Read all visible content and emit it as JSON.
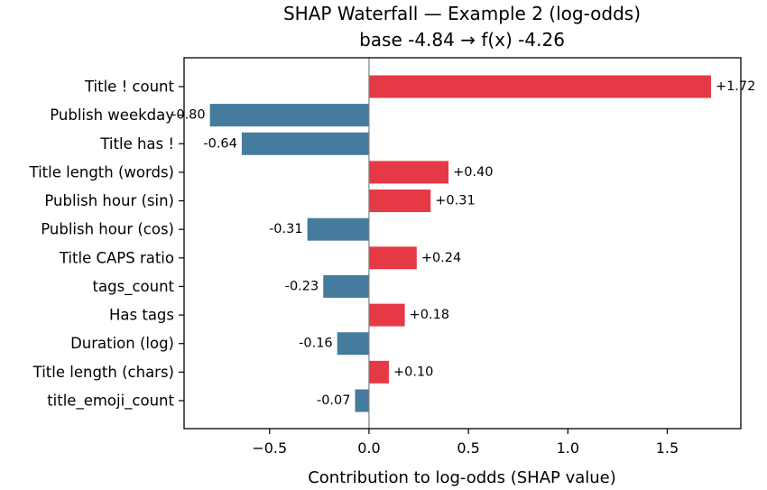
{
  "chart_data": {
    "type": "bar",
    "orientation": "horizontal",
    "title": "SHAP Waterfall — Example 2 (log-odds)",
    "subtitle": "base -4.84 → f(x) -4.26",
    "xlabel": "Contribution to log-odds (SHAP value)",
    "ylabel": "",
    "xlim": [
      -0.93,
      1.87
    ],
    "xticks": [
      -0.5,
      0.0,
      0.5,
      1.0,
      1.5
    ],
    "xtick_labels": [
      "−0.5",
      "0.0",
      "0.5",
      "1.0",
      "1.5"
    ],
    "grid": false,
    "categories": [
      "Title ! count",
      "Publish weekday",
      "Title has !",
      "Title length (words)",
      "Publish hour (sin)",
      "Publish hour (cos)",
      "Title CAPS ratio",
      "tags_count",
      "Has tags",
      "Duration (log)",
      "Title length (chars)",
      "title_emoji_count"
    ],
    "values": [
      1.72,
      -0.8,
      -0.64,
      0.4,
      0.31,
      -0.31,
      0.24,
      -0.23,
      0.18,
      -0.16,
      0.1,
      -0.07
    ],
    "data_labels": [
      "+1.72",
      "-0.80",
      "-0.64",
      "+0.40",
      "+0.31",
      "-0.31",
      "+0.24",
      "-0.23",
      "+0.18",
      "-0.16",
      "+0.10",
      "-0.07"
    ],
    "colors": {
      "positive": "#e63946",
      "negative": "#457b9d",
      "zero_line": "#808080"
    }
  }
}
